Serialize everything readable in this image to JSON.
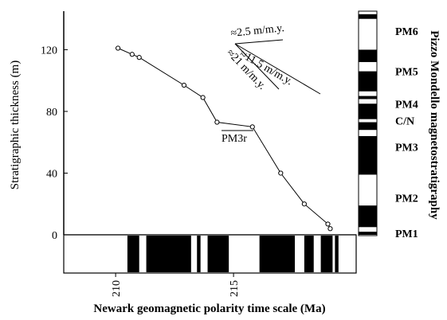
{
  "chart_data": {
    "type": "scatter",
    "xlabel": "Newark geomagnetic polarity time scale (Ma)",
    "ylabel": "Stratigraphic thickness (m)",
    "right_label": "Pizzo Mondello magnetostratigraphy",
    "xlim": [
      207.8,
      220.2
    ],
    "ylim": [
      0,
      145
    ],
    "x_ticks": [
      210,
      215
    ],
    "y_ticks": [
      0,
      40,
      80,
      120
    ],
    "points": [
      {
        "x": 210.1,
        "y": 121
      },
      {
        "x": 210.7,
        "y": 117
      },
      {
        "x": 211.0,
        "y": 115
      },
      {
        "x": 212.9,
        "y": 97
      },
      {
        "x": 213.7,
        "y": 89
      },
      {
        "x": 214.3,
        "y": 73
      },
      {
        "x": 215.8,
        "y": 70
      },
      {
        "x": 217.0,
        "y": 40
      },
      {
        "x": 218.0,
        "y": 20
      },
      {
        "x": 219.0,
        "y": 7
      },
      {
        "x": 219.1,
        "y": 4
      }
    ],
    "annotations": {
      "pm3r": "PM3r",
      "rate_25": "≈2.5 m/m.y.",
      "rate_115": "≈11.5 m/m.y.",
      "rate_21": "≈21 m/m.y."
    },
    "newark_black_bands_ma": [
      [
        210.5,
        211.0
      ],
      [
        211.3,
        213.2
      ],
      [
        213.45,
        213.6
      ],
      [
        213.9,
        214.8
      ],
      [
        216.1,
        217.6
      ],
      [
        218.0,
        218.4
      ],
      [
        218.7,
        219.2
      ],
      [
        219.3,
        219.45
      ]
    ],
    "pm_zones": [
      {
        "label": "PM6",
        "y": 132
      },
      {
        "label": "PM5",
        "y": 106
      },
      {
        "label": "PM4",
        "y": 85
      },
      {
        "label": "C/N",
        "y": 74
      },
      {
        "label": "PM3",
        "y": 57
      },
      {
        "label": "PM2",
        "y": 24
      },
      {
        "label": "PM1",
        "y": 1
      }
    ],
    "pm_black_bands_m": [
      [
        140,
        143
      ],
      [
        112,
        120
      ],
      [
        93,
        106
      ],
      [
        88,
        90
      ],
      [
        75,
        85
      ],
      [
        68,
        73
      ],
      [
        39,
        64
      ],
      [
        5,
        19
      ],
      [
        0,
        2
      ]
    ]
  }
}
